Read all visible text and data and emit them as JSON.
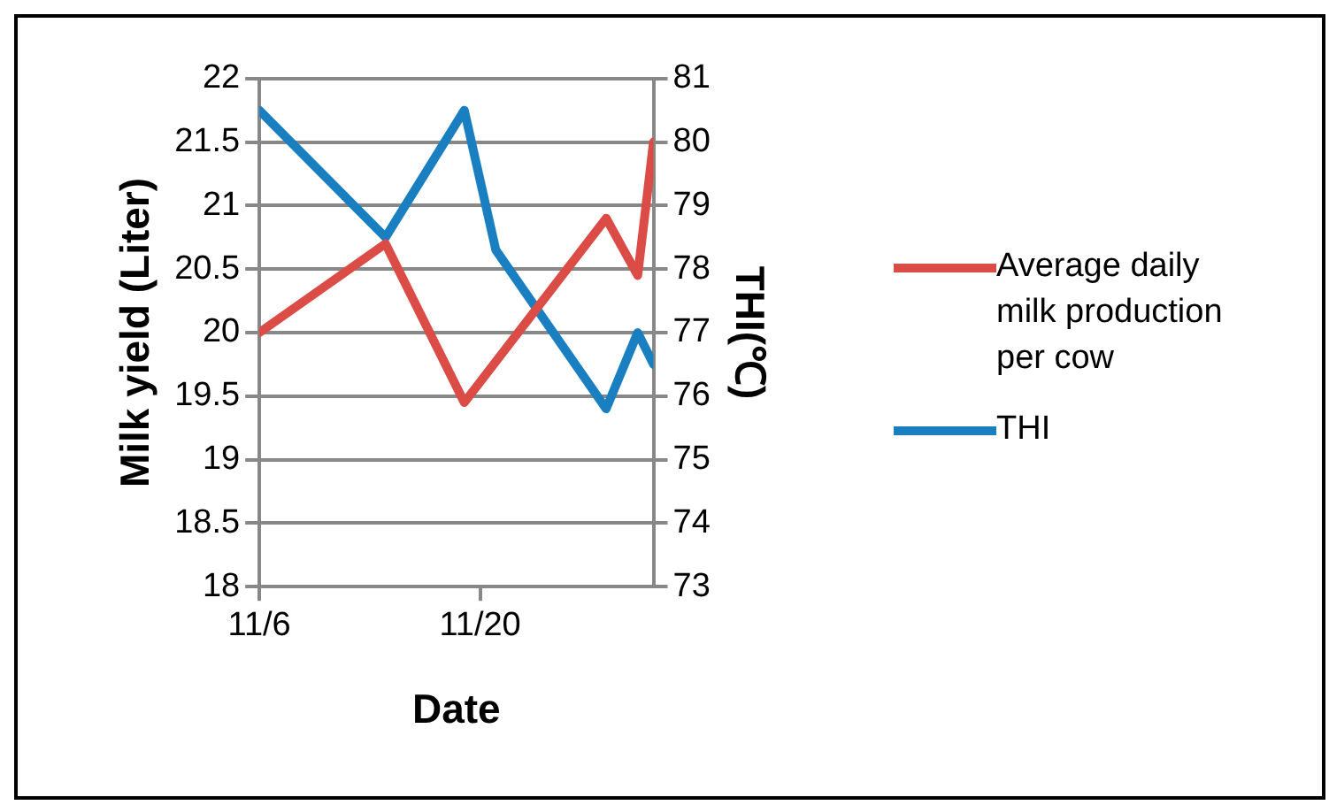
{
  "chart_data": {
    "type": "line",
    "xlabel": "Date",
    "ylabel": "Milk yield (Liter)",
    "y2label": "THI(℃)",
    "xlim": [
      "--11-06",
      "--12-01"
    ],
    "xticks": [
      {
        "value": "--11-06",
        "label": "11/6"
      },
      {
        "value": "--11-20",
        "label": "11/20"
      }
    ],
    "ylim": [
      18,
      22
    ],
    "yticks": [
      18,
      18.5,
      19,
      19.5,
      20,
      20.5,
      21,
      21.5,
      22
    ],
    "y2lim": [
      73,
      81
    ],
    "y2ticks": [
      73,
      74,
      75,
      76,
      77,
      78,
      79,
      80,
      81
    ],
    "grid": "y",
    "legend": "right",
    "marker": "none",
    "line_style": "solid",
    "series": [
      {
        "name": "Average daily milk production per cow",
        "color": "#db4c46",
        "x": [
          "--11-06",
          "--11-14",
          "--11-19",
          "--11-28",
          "--11-30",
          "--12-01"
        ],
        "values": [
          20.0,
          20.7,
          19.45,
          20.9,
          20.45,
          21.5
        ]
      },
      {
        "name": "THI",
        "color": "#1a7fc1",
        "axis": "y2",
        "x": [
          "--11-06",
          "--11-14",
          "--11-19",
          "--11-21",
          "--11-28",
          "--11-30",
          "--12-01"
        ],
        "values": [
          80.5,
          78.5,
          80.5,
          78.3,
          75.8,
          77.0,
          76.5
        ]
      }
    ]
  }
}
